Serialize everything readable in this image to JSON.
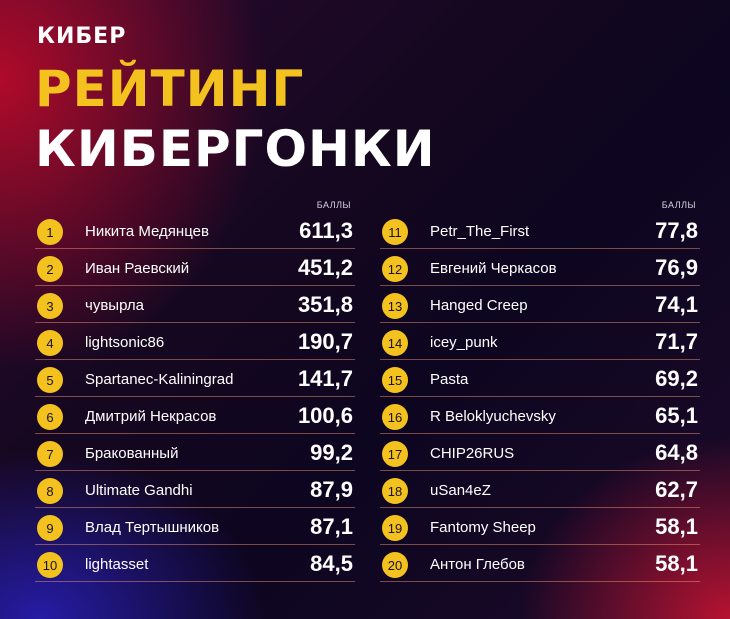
{
  "logo": "КИБЕР",
  "title": {
    "line1": "РЕЙТИНГ",
    "line2": "КИБЕРГОНКИ"
  },
  "points_header": "БАЛЛЫ",
  "colors": {
    "accent": "#f4c21f",
    "text": "#ffffff",
    "divider": "#ffa078"
  },
  "left": [
    {
      "rank": "1",
      "name": "Никита Медянцев",
      "score": "611,3"
    },
    {
      "rank": "2",
      "name": "Иван Раевский",
      "score": "451,2"
    },
    {
      "rank": "3",
      "name": "чувырла",
      "score": "351,8"
    },
    {
      "rank": "4",
      "name": "lightsonic86",
      "score": "190,7"
    },
    {
      "rank": "5",
      "name": "Spartanec-Kaliningrad",
      "score": "141,7"
    },
    {
      "rank": "6",
      "name": "Дмитрий Некрасов",
      "score": "100,6"
    },
    {
      "rank": "7",
      "name": "Бракованный",
      "score": "99,2"
    },
    {
      "rank": "8",
      "name": "Ultimate Gandhi",
      "score": "87,9"
    },
    {
      "rank": "9",
      "name": "Влад Тертышников",
      "score": "87,1"
    },
    {
      "rank": "10",
      "name": "lightasset",
      "score": "84,5"
    }
  ],
  "right": [
    {
      "rank": "11",
      "name": "Petr_The_First",
      "score": "77,8"
    },
    {
      "rank": "12",
      "name": "Евгений Черкасов",
      "score": "76,9"
    },
    {
      "rank": "13",
      "name": "Hanged Creep",
      "score": "74,1"
    },
    {
      "rank": "14",
      "name": "icey_punk",
      "score": "71,7"
    },
    {
      "rank": "15",
      "name": "Pasta",
      "score": "69,2"
    },
    {
      "rank": "16",
      "name": "R Beloklyuchevsky",
      "score": "65,1"
    },
    {
      "rank": "17",
      "name": "CHIP26RUS",
      "score": "64,8"
    },
    {
      "rank": "18",
      "name": "uSan4eZ",
      "score": "62,7"
    },
    {
      "rank": "19",
      "name": "Fantomy Sheep",
      "score": "58,1"
    },
    {
      "rank": "20",
      "name": "Антон Глебов",
      "score": "58,1"
    }
  ]
}
